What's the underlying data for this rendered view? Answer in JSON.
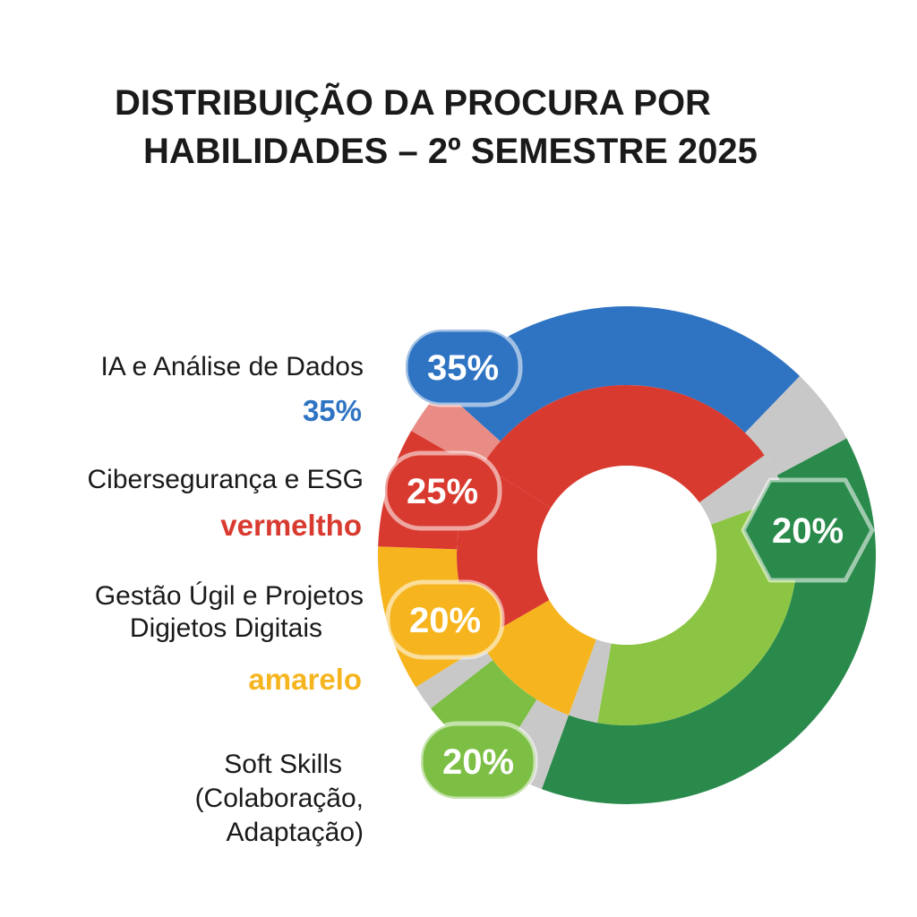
{
  "chart_data": {
    "type": "pie",
    "variant": "donut",
    "title_line1": "DISTRIBUIÇÃO DA PROCURA POR",
    "title_line2": "HABILIDADES – 2º SEMESTRE 2025",
    "legend_placement": "left",
    "slices": [
      {
        "label": "IA e Análise de Dados",
        "value": 35,
        "value_label": "35%",
        "legend_value": "35%",
        "color": "#2f74c3",
        "inner_color": "#d93a2f"
      },
      {
        "label": "Cibersegurança e ESG",
        "value": 25,
        "value_label": "25%",
        "legend_value": "vermeltho",
        "color": "#d93a2f",
        "inner_color": "#d93a2f"
      },
      {
        "label_line1": "Gestão Úgil e Projetos",
        "label_line2": "Digjetos Digitais",
        "value": 20,
        "value_label": "20%",
        "legend_value": "amarelo",
        "color": "#f6b51f",
        "inner_color": "#f6b51f"
      },
      {
        "label_line1": "Soft Skills",
        "label_line2": "(Colaboração,",
        "label_line3": "Adaptação)",
        "value": 20,
        "value_label": "20%",
        "color": "#7cbf44",
        "inner_color": "#8cc543"
      }
    ],
    "extra_label": "20%",
    "extra_color": "#2a8a4b",
    "separator_color": "#c8c8c8"
  }
}
